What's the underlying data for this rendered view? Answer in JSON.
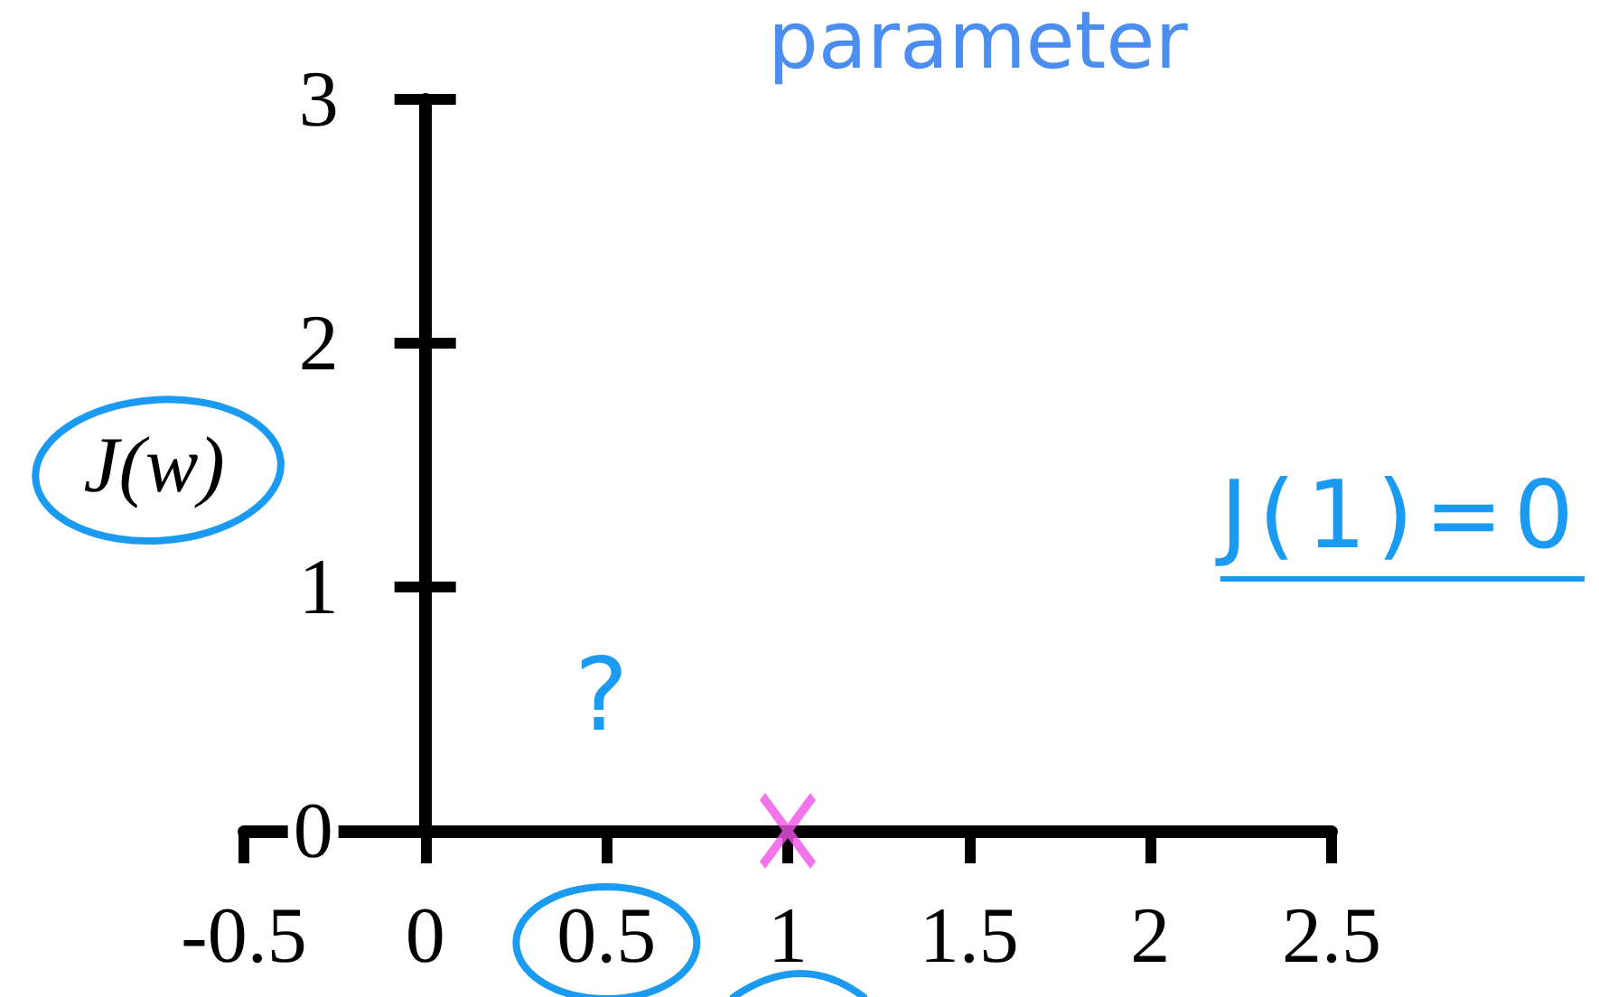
{
  "chart_data": {
    "type": "scatter",
    "title": "parameter",
    "ylabel": "J(w)",
    "x": [
      1
    ],
    "values": [
      0
    ],
    "color": "#f052e6",
    "marker": "cross",
    "xlim": [
      -0.5,
      2.5
    ],
    "xticks": [
      -0.5,
      0,
      0.5,
      1,
      1.5,
      2,
      2.5
    ],
    "ylim": [
      0,
      3
    ],
    "yticks": [
      0,
      1,
      2,
      3
    ],
    "annotations": [
      "?",
      "J(1)=0"
    ]
  }
}
